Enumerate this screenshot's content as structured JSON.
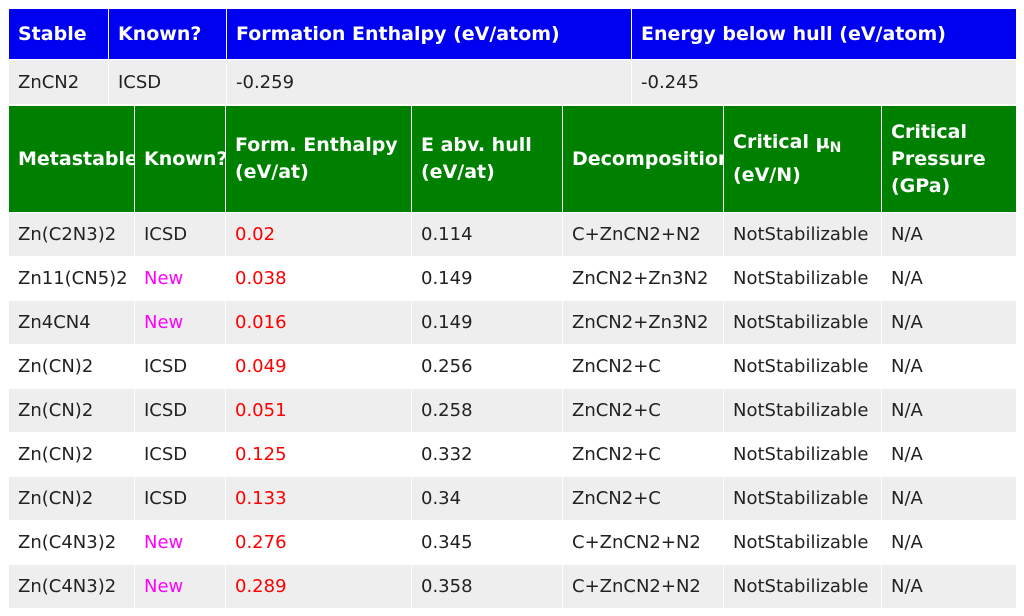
{
  "stable_table": {
    "headers": [
      "Stable",
      "Known?",
      "Formation Enthalpy (eV/atom)",
      "Energy below hull (eV/atom)"
    ],
    "row": [
      "ZnCN2",
      "ICSD",
      "-0.259",
      "-0.245"
    ]
  },
  "metastable_table": {
    "headers": {
      "metastable": "Metastable",
      "known": "Known?",
      "form_enthalpy": "Form. Enthalpy (eV/at)",
      "e_abv_hull": "E abv. hull (eV/at)",
      "decomposition": "Decomposition",
      "critical_mu_prefix": "Critical μ",
      "critical_mu_sub": "N",
      "critical_mu_unit": "(eV/N)",
      "critical_pressure": "Critical Pressure (GPa)"
    },
    "rows": [
      [
        "Zn(C2N3)2",
        "ICSD",
        "0.02",
        "0.114",
        "C+ZnCN2+N2",
        "NotStabilizable",
        "N/A"
      ],
      [
        "Zn11(CN5)2",
        "New",
        "0.038",
        "0.149",
        "ZnCN2+Zn3N2",
        "NotStabilizable",
        "N/A"
      ],
      [
        "Zn4CN4",
        "New",
        "0.016",
        "0.149",
        "ZnCN2+Zn3N2",
        "NotStabilizable",
        "N/A"
      ],
      [
        "Zn(CN)2",
        "ICSD",
        "0.049",
        "0.256",
        "ZnCN2+C",
        "NotStabilizable",
        "N/A"
      ],
      [
        "Zn(CN)2",
        "ICSD",
        "0.051",
        "0.258",
        "ZnCN2+C",
        "NotStabilizable",
        "N/A"
      ],
      [
        "Zn(CN)2",
        "ICSD",
        "0.125",
        "0.332",
        "ZnCN2+C",
        "NotStabilizable",
        "N/A"
      ],
      [
        "Zn(CN)2",
        "ICSD",
        "0.133",
        "0.34",
        "ZnCN2+C",
        "NotStabilizable",
        "N/A"
      ],
      [
        "Zn(C4N3)2",
        "New",
        "0.276",
        "0.345",
        "C+ZnCN2+N2",
        "NotStabilizable",
        "N/A"
      ],
      [
        "Zn(C4N3)2",
        "New",
        "0.289",
        "0.358",
        "C+ZnCN2+N2",
        "NotStabilizable",
        "N/A"
      ]
    ]
  },
  "colors": {
    "stable_header": "#0000f0",
    "metastable_header": "#008000",
    "enthalpy_text": "#ff0000",
    "new_text": "#ff00ff"
  }
}
